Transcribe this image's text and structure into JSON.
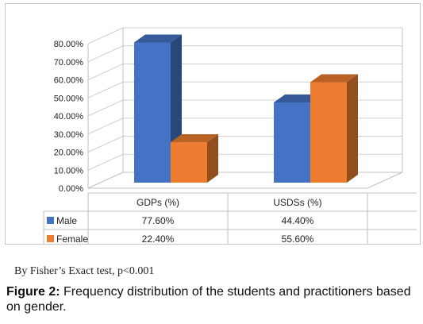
{
  "chart_data": {
    "type": "bar",
    "categories": [
      "GDPs (%)",
      "USDSs (%)"
    ],
    "series": [
      {
        "name": "Male",
        "values": [
          77.6,
          44.4
        ],
        "color": "#4472c4",
        "labels": [
          "77.60%",
          "44.40%"
        ]
      },
      {
        "name": "Female",
        "values": [
          22.4,
          55.6
        ],
        "color": "#ed7d31",
        "labels": [
          "22.40%",
          "55.60%"
        ]
      }
    ],
    "ylim": [
      0,
      80
    ],
    "yticks": [
      "0.00%",
      "10.00%",
      "20.00%",
      "30.00%",
      "40.00%",
      "50.00%",
      "60.00%",
      "70.00%",
      "80.00%"
    ],
    "grid": true,
    "style": "3d-clustered-column",
    "legend": "data-table"
  },
  "footnote": "By Fisher’s Exact test, p<0.001",
  "caption": {
    "label": "Figure 2:",
    "text": " Frequency distribution of the students and practitioners based on gender."
  }
}
